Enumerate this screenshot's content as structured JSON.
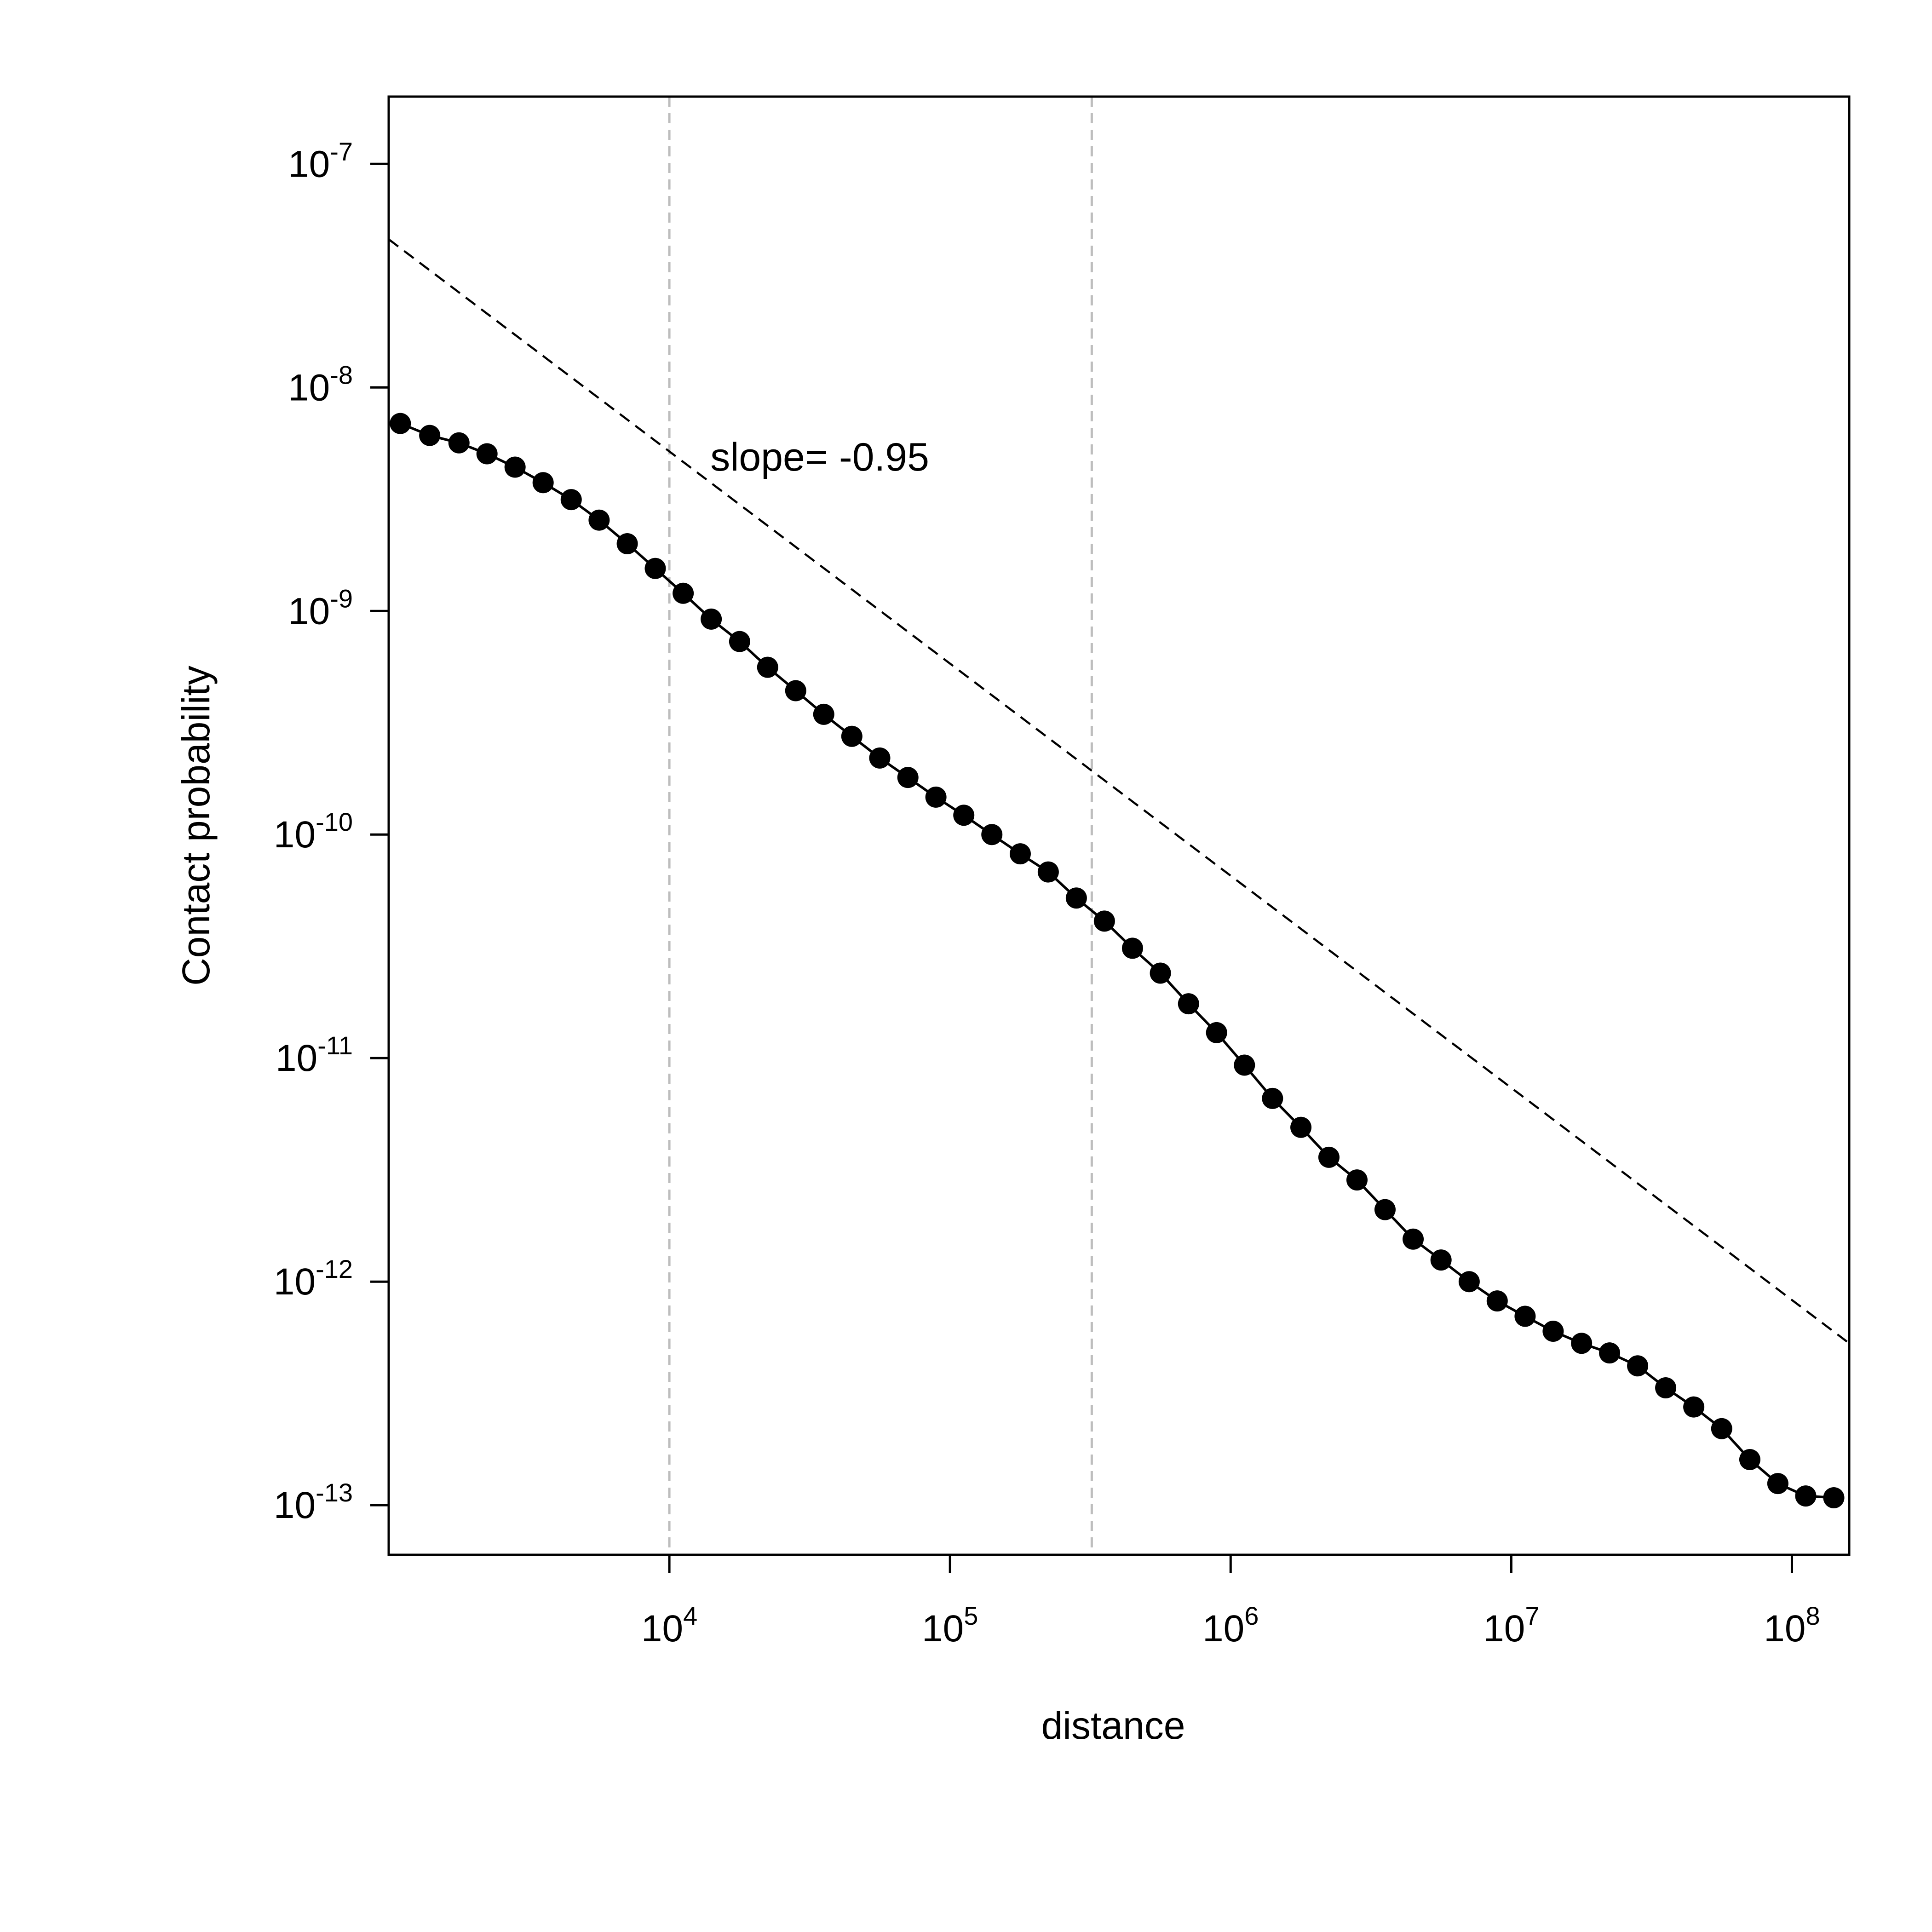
{
  "chart_data": {
    "type": "line",
    "log_x": true,
    "log_y": true,
    "xlabel": "distance",
    "ylabel": "Contact probability",
    "xlim": [
      1000,
      160000000
    ],
    "ylim": [
      6e-14,
      2e-07
    ],
    "x_ticks": [
      {
        "value": 10000,
        "base": "10",
        "exp": "4"
      },
      {
        "value": 100000,
        "base": "10",
        "exp": "5"
      },
      {
        "value": 1000000,
        "base": "10",
        "exp": "6"
      },
      {
        "value": 10000000,
        "base": "10",
        "exp": "7"
      },
      {
        "value": 100000000,
        "base": "10",
        "exp": "8"
      }
    ],
    "y_ticks": [
      {
        "value": 1e-07,
        "base": "10",
        "exp": "-7"
      },
      {
        "value": 1e-08,
        "base": "10",
        "exp": "-8"
      },
      {
        "value": 1e-09,
        "base": "10",
        "exp": "-9"
      },
      {
        "value": 1e-10,
        "base": "10",
        "exp": "-10"
      },
      {
        "value": 1e-11,
        "base": "10",
        "exp": "-11"
      },
      {
        "value": 1e-12,
        "base": "10",
        "exp": "-12"
      },
      {
        "value": 1e-13,
        "base": "10",
        "exp": "-13"
      }
    ],
    "vertical_reference_lines": [
      10000,
      320000
    ],
    "reference_line": {
      "style": "dashed",
      "slope": -0.95,
      "points": [
        [
          1000,
          4.6e-08
        ],
        [
          160000000,
          5.3e-13
        ]
      ]
    },
    "annotation": {
      "text": "slope= -0.95",
      "x": 14000,
      "y": 4.9e-09
    },
    "series": [
      {
        "points": [
          [
            1100,
            6.9e-09
          ],
          [
            1400,
            6.1e-09
          ],
          [
            1780,
            5.65e-09
          ],
          [
            2240,
            5.05e-09
          ],
          [
            2820,
            4.4e-09
          ],
          [
            3550,
            3.75e-09
          ],
          [
            4470,
            3.15e-09
          ],
          [
            5620,
            2.55e-09
          ],
          [
            7080,
            2e-09
          ],
          [
            8910,
            1.55e-09
          ],
          [
            11200,
            1.2e-09
          ],
          [
            14100,
            9.2e-10
          ],
          [
            17800,
            7.3e-10
          ],
          [
            22400,
            5.6e-10
          ],
          [
            28200,
            4.4e-10
          ],
          [
            35500,
            3.45e-10
          ],
          [
            44700,
            2.75e-10
          ],
          [
            56200,
            2.2e-10
          ],
          [
            70800,
            1.8e-10
          ],
          [
            89100,
            1.47e-10
          ],
          [
            112000,
            1.22e-10
          ],
          [
            141000,
            1e-10
          ],
          [
            178000,
            8.2e-11
          ],
          [
            224000,
            6.8e-11
          ],
          [
            282000,
            5.2e-11
          ],
          [
            355000,
            4.1e-11
          ],
          [
            447000,
            3.1e-11
          ],
          [
            562000,
            2.4e-11
          ],
          [
            708000,
            1.75e-11
          ],
          [
            891000,
            1.3e-11
          ],
          [
            1120000,
            9.3e-12
          ],
          [
            1410000,
            6.6e-12
          ],
          [
            1780000,
            4.9e-12
          ],
          [
            2240000,
            3.6e-12
          ],
          [
            2820000,
            2.85e-12
          ],
          [
            3550000,
            2.1e-12
          ],
          [
            4470000,
            1.55e-12
          ],
          [
            5620000,
            1.25e-12
          ],
          [
            7080000,
            1e-12
          ],
          [
            8910000,
            8.2e-13
          ],
          [
            11200000,
            7e-13
          ],
          [
            14100000,
            6e-13
          ],
          [
            17800000,
            5.3e-13
          ],
          [
            22400000,
            4.8e-13
          ],
          [
            28200000,
            4.2e-13
          ],
          [
            35500000,
            3.35e-13
          ],
          [
            44700000,
            2.75e-13
          ],
          [
            56200000,
            2.2e-13
          ],
          [
            70800000,
            1.6e-13
          ],
          [
            89100000,
            1.25e-13
          ],
          [
            112000000,
            1.1e-13
          ],
          [
            141000000,
            1.08e-13
          ]
        ]
      }
    ]
  }
}
